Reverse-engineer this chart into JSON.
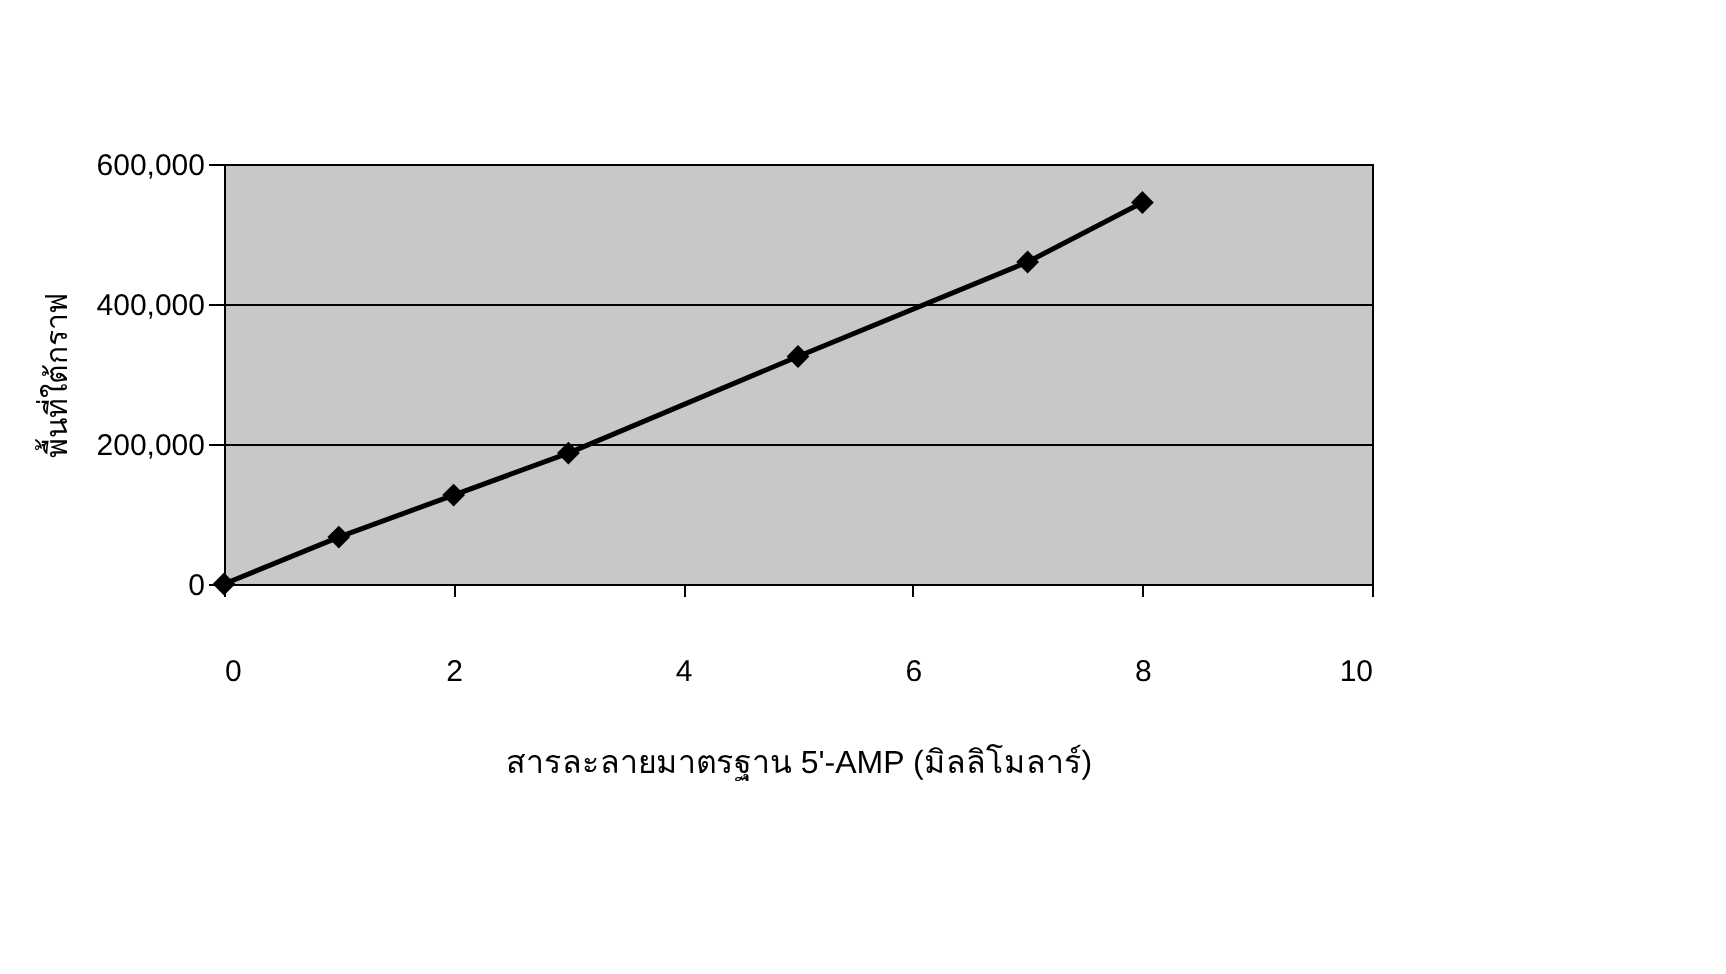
{
  "chart_data": {
    "type": "line",
    "xlabel": "สารละลายมาตรฐาน 5'-AMP (มิลลิโมลาร์)",
    "ylabel": "พื้นที่ใต้กราฟ",
    "x": [
      0,
      1,
      2,
      3,
      5,
      7,
      8
    ],
    "series": [
      {
        "color": "#000000",
        "values": [
          0,
          67000,
          127000,
          187000,
          325000,
          460000,
          545000
        ]
      }
    ],
    "xlim": [
      0,
      10
    ],
    "xticks": [
      0,
      2,
      4,
      6,
      8,
      10
    ],
    "ylim": [
      0,
      600000
    ],
    "yticks": [
      0,
      {
        "value": 200000,
        "label": "200,000"
      },
      {
        "value": 400000,
        "label": "400,000"
      },
      {
        "value": 600000,
        "label": "600,000"
      }
    ],
    "grid": "y",
    "marker": "diamond",
    "line_style": "solid"
  }
}
